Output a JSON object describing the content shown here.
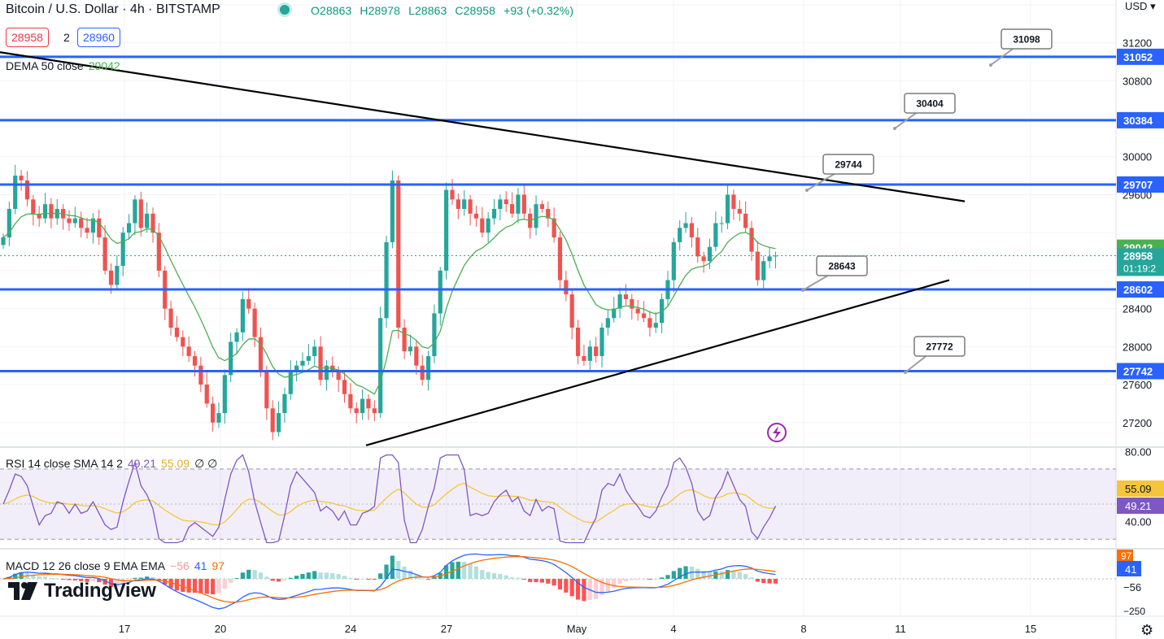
{
  "header": {
    "symbol_title": "Bitcoin / U.S. Dollar · 4h · BITSTAMP",
    "ohlc": {
      "open": "O28863",
      "high": "H28978",
      "low": "L28863",
      "close": "C28958",
      "change": "+93 (+0.32%)"
    },
    "bid": "28958",
    "spread": "2",
    "ask": "28960"
  },
  "indicators": {
    "dema": {
      "label": "DEMA 50 close",
      "value": "29042"
    },
    "rsi": {
      "label": "RSI 14 close SMA 14 2",
      "value": "49.21",
      "sma_value": "55.09",
      "extra": "∅ ∅"
    },
    "macd": {
      "label": "MACD 12 26 close 9 EMA EMA",
      "hist": "−56",
      "macd": "41",
      "signal": "97"
    }
  },
  "axis": {
    "currency": "USD"
  },
  "brand": {
    "name": "TradingView"
  },
  "colors": {
    "up": "#26a69a",
    "down": "#ef5350",
    "level": "#2962ff",
    "dema": "#4caf50",
    "rsi": "#7e57c2",
    "rsi_sma": "#f5c53b",
    "macd": "#2962ff",
    "signal": "#ff6d00"
  },
  "chart_data": {
    "type": "candlestick",
    "timeframe": "4h",
    "ylim": [
      26950,
      31650
    ],
    "yticks": [
      27200,
      27600,
      28000,
      28400,
      29600,
      30000,
      30800,
      31200
    ],
    "x_ticks": [
      "17",
      "20",
      "24",
      "27",
      "May",
      "4",
      "8",
      "11",
      "15"
    ],
    "horizontal_levels": [
      31052,
      30384,
      29707,
      28602,
      27742
    ],
    "level_callouts": [
      "31098",
      "30404",
      "29744",
      "28643",
      "27772"
    ],
    "price_labels": {
      "dema": "29042",
      "last": "28958",
      "countdown": "01:19:2"
    },
    "close_series": [
      29150,
      29450,
      29800,
      29750,
      29550,
      29400,
      29350,
      29500,
      29350,
      29450,
      29350,
      29300,
      29350,
      29250,
      29200,
      29350,
      29150,
      28800,
      28650,
      28850,
      29200,
      29300,
      29550,
      29250,
      29400,
      29200,
      28800,
      28400,
      28200,
      28100,
      28000,
      27900,
      27800,
      27600,
      27400,
      27200,
      27300,
      27700,
      28050,
      28150,
      28500,
      28400,
      28100,
      27750,
      27350,
      27100,
      27300,
      27500,
      27750,
      27800,
      27850,
      27900,
      28000,
      27650,
      27800,
      27750,
      27650,
      27500,
      27350,
      27300,
      27450,
      27350,
      27300,
      28300,
      29100,
      29750,
      28200,
      27950,
      28000,
      27800,
      27650,
      27900,
      28350,
      28800,
      29650,
      29550,
      29450,
      29550,
      29400,
      29350,
      29200,
      29350,
      29450,
      29550,
      29500,
      29400,
      29600,
      29400,
      29250,
      29500,
      29450,
      29350,
      29150,
      28700,
      28550,
      28200,
      27900,
      27850,
      28000,
      27900,
      28200,
      28300,
      28400,
      28550,
      28500,
      28400,
      28350,
      28300,
      28200,
      28250,
      28500,
      28700,
      29100,
      29250,
      29300,
      29150,
      28950,
      28900,
      29050,
      29300,
      29300,
      29600,
      29450,
      29400,
      29250,
      29000,
      28700,
      28900,
      28950,
      28958
    ],
    "rsi": {
      "overbought": 70,
      "oversold": 30,
      "ylim": [
        25,
        82
      ],
      "ticks": [
        "80.00",
        "40.00"
      ],
      "labels": [
        "55.09",
        "49.21"
      ]
    },
    "macd": {
      "labels": [
        "97",
        "41",
        "−56",
        "−250"
      ]
    }
  }
}
